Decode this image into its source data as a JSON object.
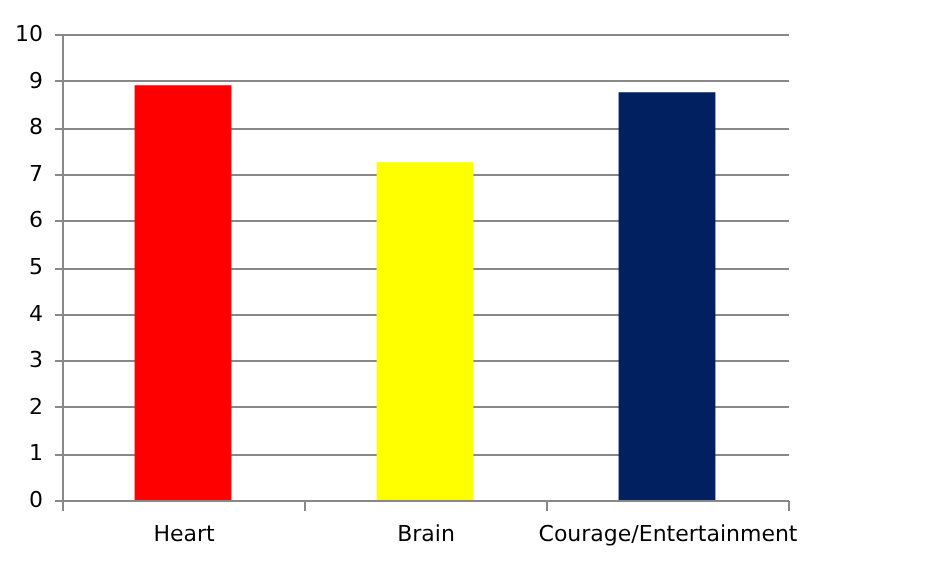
{
  "chart_data": {
    "type": "bar",
    "categories": [
      "Heart",
      "Brain",
      "Courage/Entertainment"
    ],
    "values": [
      8.9,
      7.25,
      8.75
    ],
    "colors": [
      "#ff0000",
      "#ffff00",
      "#002060"
    ],
    "ylim": [
      0,
      10
    ],
    "yticks": [
      0,
      1,
      2,
      3,
      4,
      5,
      6,
      7,
      8,
      9,
      10
    ],
    "grid": "y"
  }
}
